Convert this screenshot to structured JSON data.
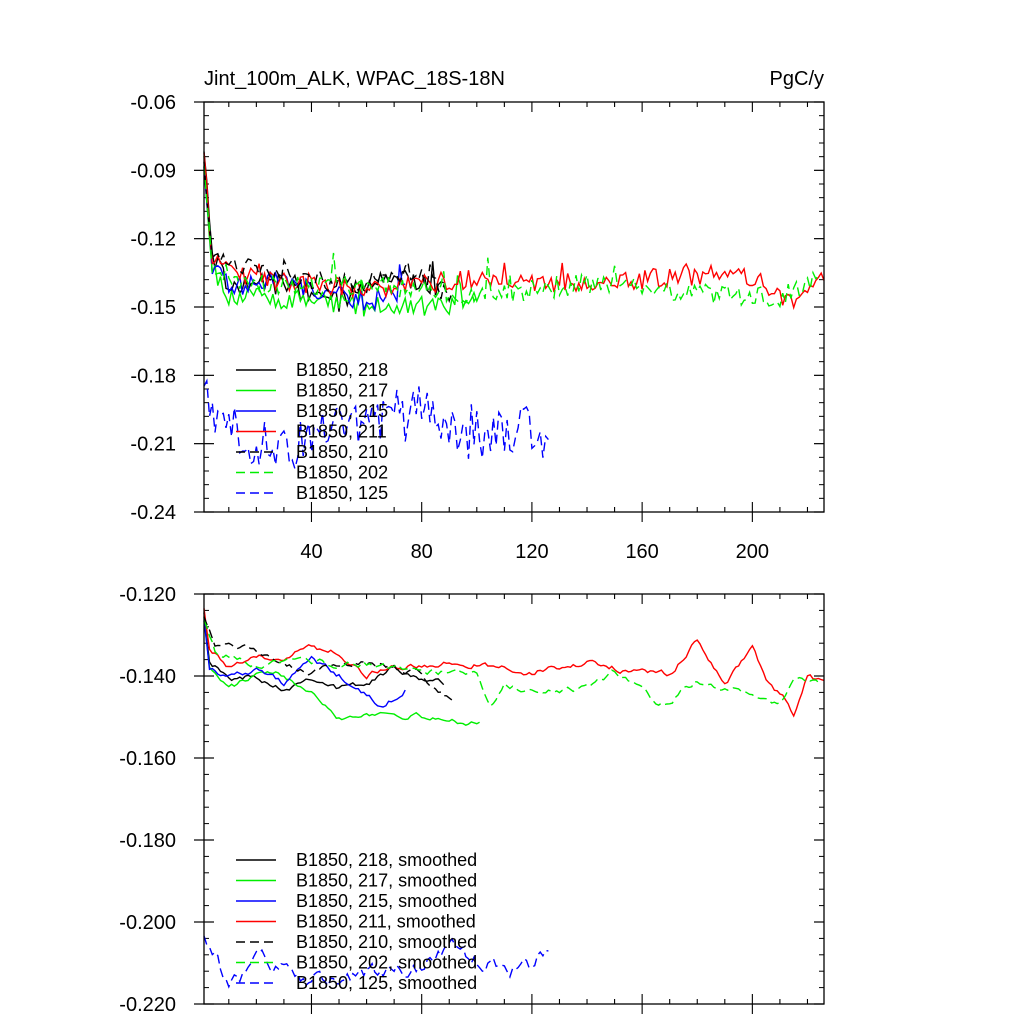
{
  "chart_data": [
    {
      "type": "line",
      "title": "Jint_100m_ALK, WPAC_18S-18N",
      "units_label": "PgC/y",
      "xlim": [
        1,
        226
      ],
      "ylim": [
        -0.24,
        -0.06
      ],
      "x_ticks": [
        "40",
        "80",
        "120",
        "160",
        "200"
      ],
      "y_ticks": [
        "-0.06",
        "-0.09",
        "-0.12",
        "-0.15",
        "-0.18",
        "-0.21",
        "-0.24"
      ],
      "series": [
        {
          "name": "B1850, 218",
          "color": "#000000",
          "dash": "solid",
          "years": 88,
          "anchors": [
            [
              1,
              -0.083
            ],
            [
              4,
              -0.128
            ],
            [
              10,
              -0.14
            ],
            [
              30,
              -0.14
            ],
            [
              50,
              -0.148
            ],
            [
              70,
              -0.135
            ],
            [
              88,
              -0.143
            ]
          ]
        },
        {
          "name": "B1850, 217",
          "color": "#00ee00",
          "dash": "solid",
          "years": 101,
          "anchors": [
            [
              1,
              -0.085
            ],
            [
              4,
              -0.133
            ],
            [
              10,
              -0.145
            ],
            [
              40,
              -0.147
            ],
            [
              60,
              -0.15
            ],
            [
              80,
              -0.15
            ],
            [
              101,
              -0.148
            ]
          ]
        },
        {
          "name": "B1850, 215",
          "color": "#0000ff",
          "dash": "solid",
          "years": 74,
          "anchors": [
            [
              1,
              -0.09
            ],
            [
              4,
              -0.133
            ],
            [
              10,
              -0.14
            ],
            [
              30,
              -0.138
            ],
            [
              50,
              -0.145
            ],
            [
              60,
              -0.148
            ],
            [
              74,
              -0.142
            ]
          ]
        },
        {
          "name": "B1850, 211",
          "color": "#ff0000",
          "dash": "solid",
          "years": 226,
          "anchors": [
            [
              1,
              -0.084
            ],
            [
              4,
              -0.13
            ],
            [
              20,
              -0.138
            ],
            [
              60,
              -0.142
            ],
            [
              100,
              -0.138
            ],
            [
              140,
              -0.14
            ],
            [
              180,
              -0.136
            ],
            [
              200,
              -0.137
            ],
            [
              215,
              -0.148
            ],
            [
              226,
              -0.135
            ]
          ]
        },
        {
          "name": "B1850, 210",
          "color": "#000000",
          "dash": "long",
          "years": 91,
          "anchors": [
            [
              1,
              -0.088
            ],
            [
              4,
              -0.125
            ],
            [
              15,
              -0.132
            ],
            [
              40,
              -0.138
            ],
            [
              60,
              -0.14
            ],
            [
              75,
              -0.134
            ],
            [
              91,
              -0.146
            ]
          ]
        },
        {
          "name": "B1850, 202",
          "color": "#00ee00",
          "dash": "long",
          "years": 224,
          "anchors": [
            [
              1,
              -0.09
            ],
            [
              4,
              -0.132
            ],
            [
              20,
              -0.14
            ],
            [
              60,
              -0.14
            ],
            [
              100,
              -0.145
            ],
            [
              140,
              -0.14
            ],
            [
              180,
              -0.144
            ],
            [
              210,
              -0.146
            ],
            [
              224,
              -0.138
            ]
          ]
        },
        {
          "name": "B1850, 125",
          "color": "#0000ff",
          "dash": "long",
          "years": 126,
          "anchors": [
            [
              1,
              -0.19
            ],
            [
              20,
              -0.21
            ],
            [
              40,
              -0.21
            ],
            [
              60,
              -0.2
            ],
            [
              80,
              -0.195
            ],
            [
              100,
              -0.205
            ],
            [
              126,
              -0.205
            ]
          ]
        }
      ]
    },
    {
      "type": "line",
      "title": "",
      "xlim": [
        1,
        226
      ],
      "ylim": [
        -0.22,
        -0.12
      ],
      "x_ticks": [],
      "y_ticks": [
        "-0.120",
        "-0.140",
        "-0.160",
        "-0.180",
        "-0.200",
        "-0.220"
      ],
      "series": [
        {
          "name": "B1850, 218, smoothed",
          "color": "#000000",
          "dash": "solid",
          "years": 88,
          "anchors": [
            [
              1,
              -0.124
            ],
            [
              3,
              -0.136
            ],
            [
              10,
              -0.141
            ],
            [
              20,
              -0.14
            ],
            [
              30,
              -0.143
            ],
            [
              40,
              -0.14
            ],
            [
              50,
              -0.143
            ],
            [
              60,
              -0.142
            ],
            [
              70,
              -0.138
            ],
            [
              88,
              -0.142
            ]
          ]
        },
        {
          "name": "B1850, 217, smoothed",
          "color": "#00ee00",
          "dash": "solid",
          "years": 101,
          "anchors": [
            [
              1,
              -0.125
            ],
            [
              3,
              -0.138
            ],
            [
              10,
              -0.143
            ],
            [
              20,
              -0.14
            ],
            [
              30,
              -0.14
            ],
            [
              40,
              -0.143
            ],
            [
              50,
              -0.15
            ],
            [
              60,
              -0.149
            ],
            [
              70,
              -0.149
            ],
            [
              80,
              -0.15
            ],
            [
              90,
              -0.151
            ],
            [
              101,
              -0.151
            ]
          ]
        },
        {
          "name": "B1850, 215, smoothed",
          "color": "#0000ff",
          "dash": "solid",
          "years": 74,
          "anchors": [
            [
              1,
              -0.126
            ],
            [
              3,
              -0.138
            ],
            [
              10,
              -0.14
            ],
            [
              20,
              -0.138
            ],
            [
              30,
              -0.142
            ],
            [
              40,
              -0.136
            ],
            [
              50,
              -0.14
            ],
            [
              60,
              -0.145
            ],
            [
              66,
              -0.148
            ],
            [
              74,
              -0.143
            ]
          ]
        },
        {
          "name": "B1850, 211, smoothed",
          "color": "#ff0000",
          "dash": "solid",
          "years": 226,
          "anchors": [
            [
              1,
              -0.123
            ],
            [
              3,
              -0.133
            ],
            [
              10,
              -0.138
            ],
            [
              20,
              -0.136
            ],
            [
              30,
              -0.135
            ],
            [
              40,
              -0.133
            ],
            [
              50,
              -0.134
            ],
            [
              60,
              -0.14
            ],
            [
              70,
              -0.137
            ],
            [
              80,
              -0.138
            ],
            [
              90,
              -0.137
            ],
            [
              100,
              -0.137
            ],
            [
              120,
              -0.139
            ],
            [
              140,
              -0.137
            ],
            [
              160,
              -0.139
            ],
            [
              170,
              -0.14
            ],
            [
              180,
              -0.131
            ],
            [
              190,
              -0.142
            ],
            [
              200,
              -0.133
            ],
            [
              205,
              -0.141
            ],
            [
              212,
              -0.146
            ],
            [
              215,
              -0.15
            ],
            [
              220,
              -0.14
            ],
            [
              226,
              -0.142
            ]
          ]
        },
        {
          "name": "B1850, 210, smoothed",
          "color": "#000000",
          "dash": "long",
          "years": 91,
          "anchors": [
            [
              1,
              -0.125
            ],
            [
              5,
              -0.133
            ],
            [
              10,
              -0.131
            ],
            [
              20,
              -0.134
            ],
            [
              30,
              -0.138
            ],
            [
              40,
              -0.139
            ],
            [
              50,
              -0.137
            ],
            [
              60,
              -0.137
            ],
            [
              70,
              -0.138
            ],
            [
              80,
              -0.139
            ],
            [
              85,
              -0.143
            ],
            [
              91,
              -0.146
            ]
          ]
        },
        {
          "name": "B1850, 202, smoothed",
          "color": "#00ee00",
          "dash": "long",
          "years": 224,
          "anchors": [
            [
              1,
              -0.126
            ],
            [
              5,
              -0.134
            ],
            [
              20,
              -0.137
            ],
            [
              40,
              -0.137
            ],
            [
              60,
              -0.137
            ],
            [
              70,
              -0.138
            ],
            [
              80,
              -0.139
            ],
            [
              100,
              -0.139
            ],
            [
              105,
              -0.147
            ],
            [
              110,
              -0.142
            ],
            [
              120,
              -0.144
            ],
            [
              140,
              -0.143
            ],
            [
              150,
              -0.139
            ],
            [
              160,
              -0.143
            ],
            [
              165,
              -0.147
            ],
            [
              170,
              -0.146
            ],
            [
              180,
              -0.141
            ],
            [
              190,
              -0.143
            ],
            [
              200,
              -0.144
            ],
            [
              210,
              -0.147
            ],
            [
              215,
              -0.14
            ],
            [
              224,
              -0.141
            ]
          ]
        },
        {
          "name": "B1850, 125, smoothed",
          "color": "#0000ff",
          "dash": "long",
          "years": 126,
          "anchors": [
            [
              1,
              -0.202
            ],
            [
              10,
              -0.215
            ],
            [
              20,
              -0.21
            ],
            [
              30,
              -0.212
            ],
            [
              40,
              -0.214
            ],
            [
              50,
              -0.214
            ],
            [
              60,
              -0.213
            ],
            [
              70,
              -0.213
            ],
            [
              80,
              -0.212
            ],
            [
              90,
              -0.206
            ],
            [
              100,
              -0.21
            ],
            [
              110,
              -0.212
            ],
            [
              120,
              -0.21
            ],
            [
              126,
              -0.207
            ]
          ]
        }
      ]
    }
  ]
}
